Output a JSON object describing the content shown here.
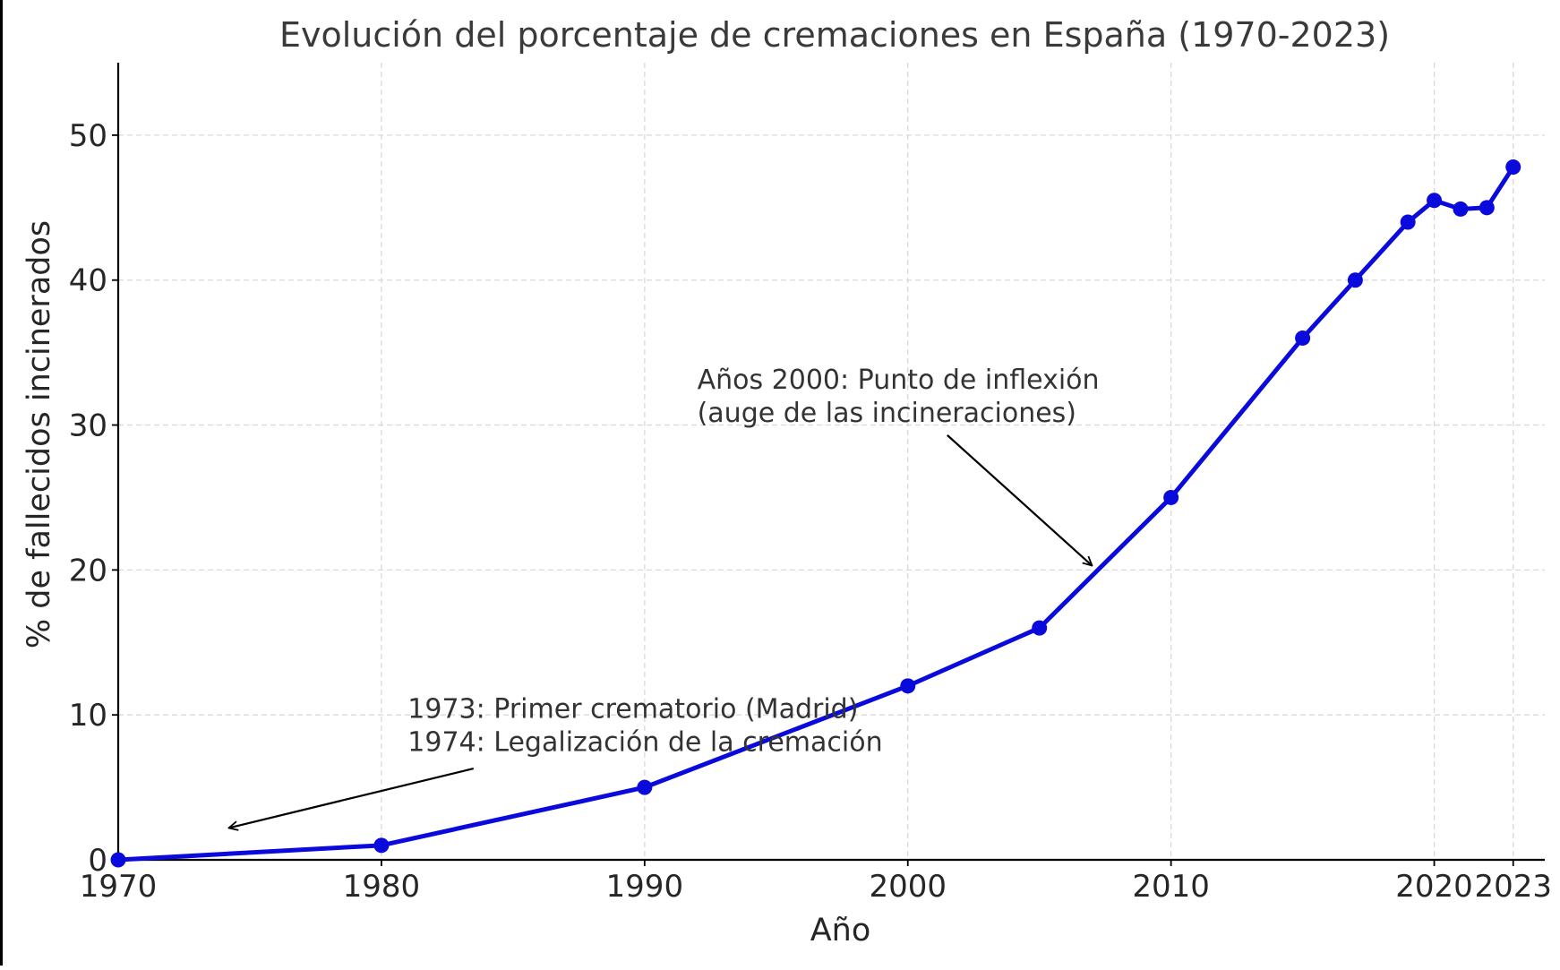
{
  "chart_data": {
    "type": "line",
    "title": "Evolución del porcentaje de cremaciones en España (1970-2023)",
    "xlabel": "Año",
    "ylabel": "% de fallecidos incinerados",
    "xlim": [
      1970,
      2024.2
    ],
    "ylim": [
      0,
      55
    ],
    "x_ticks": [
      1970,
      1980,
      1990,
      2000,
      2010,
      2020,
      2023
    ],
    "y_ticks": [
      0,
      10,
      20,
      30,
      40,
      50
    ],
    "grid": true,
    "series": [
      {
        "color": "#0a0adc",
        "x": [
          1970,
          1980,
          1990,
          2000,
          2005,
          2010,
          2015,
          2017,
          2019,
          2020,
          2021,
          2022,
          2023
        ],
        "y": [
          0,
          1,
          5,
          12,
          16,
          25,
          36,
          40,
          44,
          45.5,
          44.9,
          45,
          47.8
        ]
      }
    ],
    "annotations": [
      {
        "lines": [
          "1973: Primer crematorio (Madrid)",
          "1974: Legalización de la cremación"
        ],
        "text_at": [
          1981,
          9.8
        ],
        "arrow_from": [
          1983.5,
          6.3
        ],
        "arrow_to": [
          1974.2,
          2.2
        ]
      },
      {
        "lines": [
          "Años 2000: Punto de inflexión",
          "(auge de las incineraciones)"
        ],
        "text_at": [
          1992,
          32.5
        ],
        "arrow_from": [
          2001.5,
          29.3
        ],
        "arrow_to": [
          2007,
          20.3
        ]
      }
    ]
  }
}
